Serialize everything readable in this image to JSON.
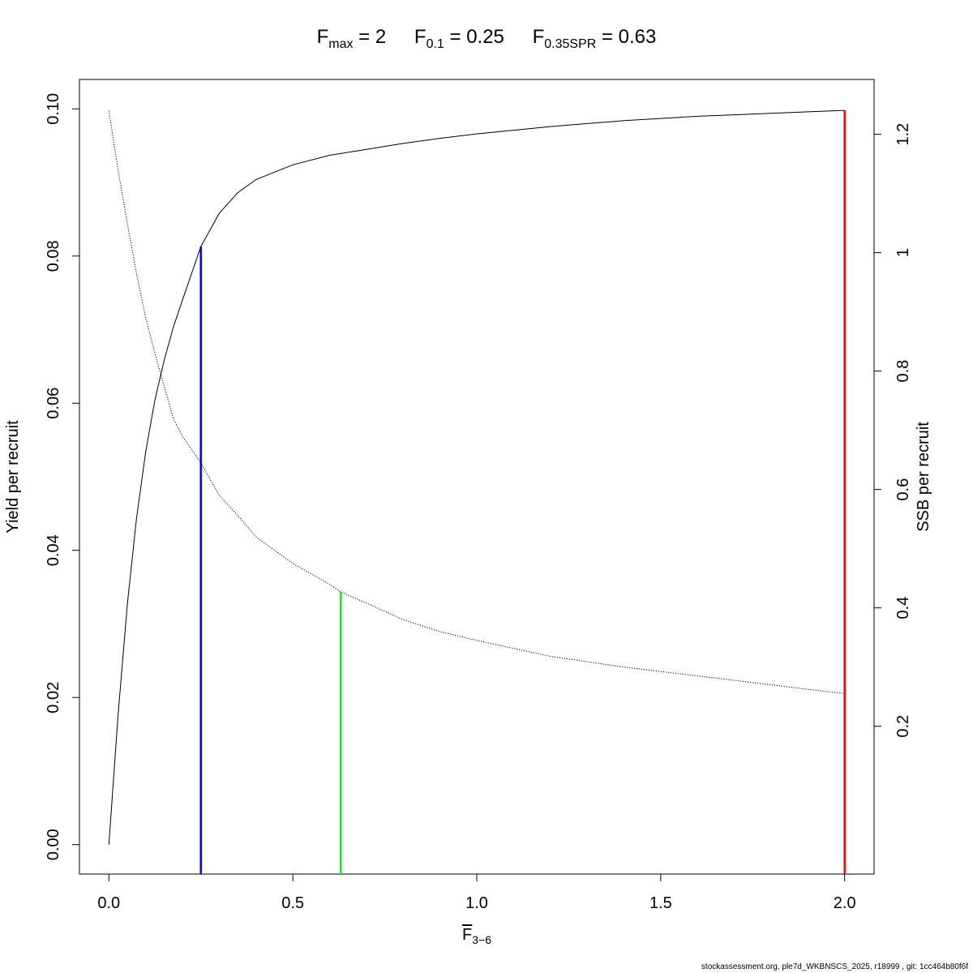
{
  "title": {
    "fmax": {
      "symbol": "F",
      "subscript": "max",
      "value": "2"
    },
    "f01": {
      "symbol": "F",
      "subscript": "0.1",
      "value": "0.25"
    },
    "fspr": {
      "symbol": "F",
      "subscript": "0.35SPR",
      "value": "0.63"
    }
  },
  "xlabel": {
    "symbol": "F",
    "subscript": "3−6"
  },
  "footer": "stockassessment.org, ple7d_WKBNSCS_2025, r18999 , git: 1cc464b80f6f",
  "chart_data": {
    "type": "line",
    "xlabel": "F̅ 3−6",
    "ylabel": "Yield per recruit",
    "y2label": "SSB per recruit",
    "xlim": [
      -0.08,
      2.08
    ],
    "ylim": [
      -0.004,
      0.104
    ],
    "y2lim": [
      -0.0497,
      1.2926
    ],
    "x_ticks": [
      "0.0",
      "0.5",
      "1.0",
      "1.5",
      "2.0"
    ],
    "x_tick_values": [
      0,
      0.5,
      1.0,
      1.5,
      2.0
    ],
    "y_ticks": [
      "0.00",
      "0.02",
      "0.04",
      "0.06",
      "0.08",
      "0.10"
    ],
    "y_tick_values": [
      0,
      0.02,
      0.04,
      0.06,
      0.08,
      0.1
    ],
    "y2_ticks": [
      "0.2",
      "0.4",
      "0.6",
      "0.8",
      "1",
      "1.2"
    ],
    "y2_tick_values": [
      0.2,
      0.4,
      0.6,
      0.8,
      1.0,
      1.2
    ],
    "grid": false,
    "series": [
      {
        "name": "Yield per recruit",
        "axis": "left",
        "style": "solid",
        "color": "#000000",
        "x": [
          0,
          0.025,
          0.05,
          0.075,
          0.1,
          0.125,
          0.15,
          0.175,
          0.2,
          0.25,
          0.3,
          0.35,
          0.4,
          0.5,
          0.6,
          0.7,
          0.8,
          0.9,
          1.0,
          1.1,
          1.2,
          1.3,
          1.4,
          1.5,
          1.6,
          1.7,
          1.8,
          1.9,
          2.0
        ],
        "y": [
          0,
          0.0176,
          0.0326,
          0.0443,
          0.0534,
          0.0604,
          0.0658,
          0.0703,
          0.074,
          0.0813,
          0.0858,
          0.0886,
          0.0904,
          0.0924,
          0.0937,
          0.0945,
          0.0953,
          0.096,
          0.0966,
          0.0971,
          0.0976,
          0.098,
          0.0984,
          0.0987,
          0.099,
          0.0992,
          0.0994,
          0.0996,
          0.0998
        ]
      },
      {
        "name": "SSB per recruit",
        "axis": "right",
        "style": "dotted",
        "color": "#000000",
        "x": [
          0,
          0.025,
          0.05,
          0.075,
          0.1,
          0.125,
          0.15,
          0.175,
          0.2,
          0.25,
          0.3,
          0.35,
          0.4,
          0.5,
          0.6,
          0.63,
          0.7,
          0.8,
          0.9,
          1.0,
          1.2,
          1.4,
          1.6,
          1.8,
          2.0
        ],
        "y": [
          1.24,
          1.14,
          1.05,
          0.965,
          0.89,
          0.83,
          0.775,
          0.72,
          0.69,
          0.645,
          0.59,
          0.556,
          0.52,
          0.475,
          0.44,
          0.427,
          0.408,
          0.38,
          0.36,
          0.345,
          0.318,
          0.3,
          0.285,
          0.27,
          0.255
        ]
      }
    ],
    "reference_lines": [
      {
        "name": "F0.1",
        "x": 0.25,
        "y_top": 0.0813,
        "axis": "left",
        "color": "#0000ff"
      },
      {
        "name": "F0.35SPR",
        "x": 0.63,
        "y_top": 0.427,
        "axis": "right",
        "color": "#00ff00"
      },
      {
        "name": "Fmax",
        "x": 2.0,
        "y_top": 0.0998,
        "axis": "left",
        "color": "#ff0000"
      }
    ]
  }
}
